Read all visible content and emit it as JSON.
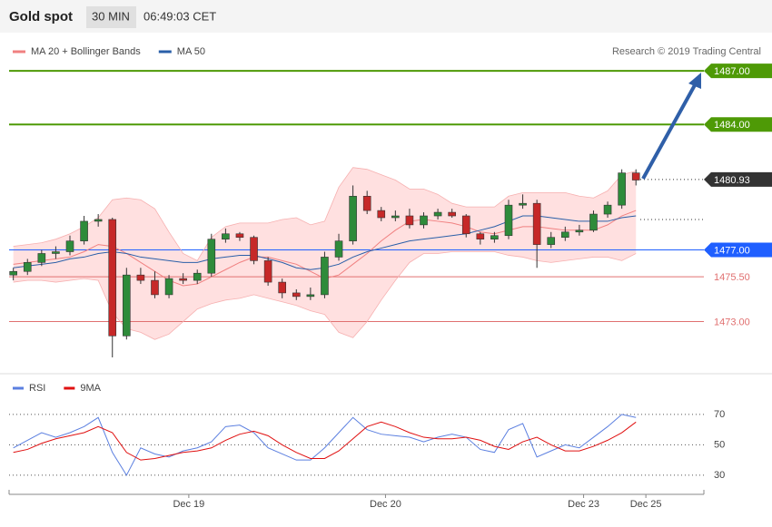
{
  "header": {
    "title": "Gold spot",
    "interval": "30 MIN",
    "time": "06:49:03 CET"
  },
  "chart_data": [
    {
      "type": "candlestick",
      "legend": [
        {
          "name": "MA 20 + Bollinger Bands",
          "color": "#f08080"
        },
        {
          "name": "MA 50",
          "color": "#2a5fa8"
        }
      ],
      "credit": "Research © 2019 Trading Central",
      "x": [
        0,
        1,
        2,
        3,
        4,
        5,
        6,
        7,
        8,
        9,
        10,
        11,
        12,
        13,
        14,
        15,
        16,
        17,
        18,
        19,
        20,
        21,
        22,
        23,
        24,
        25,
        26,
        27,
        28,
        29,
        30,
        31,
        32,
        33,
        34,
        35,
        36,
        37,
        38,
        39,
        40,
        41,
        42,
        43,
        44
      ],
      "xlim": [
        -0.3,
        48.8
      ],
      "xticks": [
        {
          "value": 12.4,
          "label": "Dec 19"
        },
        {
          "value": 26.3,
          "label": "Dec 20"
        },
        {
          "value": 40.3,
          "label": "Dec 23"
        },
        {
          "value": 44.7,
          "label": "Dec 25"
        }
      ],
      "ylim": [
        1470.19,
        1489.08
      ],
      "open": [
        1475.6,
        1475.8,
        1476.3,
        1476.8,
        1476.9,
        1477.5,
        1478.6,
        1478.7,
        1472.2,
        1475.6,
        1475.3,
        1474.5,
        1475.4,
        1475.3,
        1475.7,
        1477.6,
        1477.9,
        1477.7,
        1476.4,
        1475.2,
        1474.6,
        1474.4,
        1474.5,
        1476.6,
        1477.5,
        1480.0,
        1479.2,
        1478.8,
        1478.9,
        1478.4,
        1478.9,
        1479.1,
        1478.9,
        1477.9,
        1477.6,
        1477.8,
        1479.5,
        1479.6,
        1477.3,
        1477.7,
        1478.0,
        1478.1,
        1479.0,
        1479.5,
        1481.3
      ],
      "high": [
        1476.0,
        1476.5,
        1477.0,
        1477.2,
        1477.8,
        1478.9,
        1479.0,
        1478.8,
        1476.0,
        1476.0,
        1475.8,
        1475.6,
        1475.7,
        1475.9,
        1477.9,
        1478.2,
        1478.0,
        1477.8,
        1476.6,
        1475.4,
        1474.8,
        1474.9,
        1476.9,
        1477.9,
        1480.6,
        1480.3,
        1479.4,
        1479.2,
        1479.3,
        1479.1,
        1479.3,
        1479.3,
        1479.0,
        1478.0,
        1478.0,
        1479.8,
        1480.1,
        1479.8,
        1478.0,
        1478.3,
        1478.4,
        1479.2,
        1479.7,
        1481.5,
        1481.5
      ],
      "low": [
        1475.3,
        1475.6,
        1476.1,
        1476.5,
        1476.7,
        1477.3,
        1478.3,
        1471.0,
        1472.0,
        1475.1,
        1474.3,
        1474.3,
        1475.1,
        1475.1,
        1475.5,
        1477.4,
        1477.5,
        1476.2,
        1475.0,
        1474.3,
        1474.2,
        1474.2,
        1474.3,
        1476.4,
        1477.3,
        1479.0,
        1478.6,
        1478.6,
        1478.2,
        1478.2,
        1478.7,
        1478.8,
        1477.7,
        1477.3,
        1477.4,
        1477.6,
        1479.3,
        1476.0,
        1477.1,
        1477.5,
        1477.8,
        1478.0,
        1478.8,
        1479.3,
        1480.6
      ],
      "close": [
        1475.8,
        1476.3,
        1476.8,
        1476.9,
        1477.5,
        1478.6,
        1478.7,
        1472.2,
        1475.6,
        1475.3,
        1474.5,
        1475.4,
        1475.3,
        1475.7,
        1477.6,
        1477.9,
        1477.7,
        1476.4,
        1475.2,
        1474.6,
        1474.4,
        1474.5,
        1476.6,
        1477.5,
        1480.0,
        1479.2,
        1478.8,
        1478.9,
        1478.4,
        1478.9,
        1479.1,
        1478.9,
        1477.9,
        1477.6,
        1477.8,
        1479.5,
        1479.6,
        1477.3,
        1477.7,
        1478.0,
        1478.1,
        1479.0,
        1479.5,
        1481.3,
        1480.9
      ],
      "up_color": "#2e8b3a",
      "down_color": "#c62828",
      "series": [
        {
          "name": "Bollinger upper",
          "color": "#f6b0b0",
          "values": [
            1477.2,
            1477.3,
            1477.4,
            1477.6,
            1477.9,
            1478.3,
            1478.8,
            1479.8,
            1479.9,
            1479.8,
            1479.3,
            1478.0,
            1476.8,
            1476.4,
            1477.7,
            1478.3,
            1478.5,
            1478.5,
            1478.5,
            1478.7,
            1478.8,
            1478.4,
            1478.6,
            1480.5,
            1481.6,
            1481.5,
            1481.2,
            1480.9,
            1480.4,
            1480.4,
            1480.1,
            1479.6,
            1479.4,
            1479.4,
            1479.4,
            1480.0,
            1480.2,
            1480.2,
            1480.2,
            1480.2,
            1480.0,
            1479.9,
            1480.3,
            1481.2,
            1481.4
          ]
        },
        {
          "name": "Bollinger lower",
          "color": "#f6b0b0",
          "values": [
            1475.2,
            1475.3,
            1475.3,
            1475.2,
            1475.3,
            1475.4,
            1475.3,
            1473.5,
            1472.6,
            1472.4,
            1472.0,
            1472.3,
            1473.0,
            1473.7,
            1474.0,
            1474.2,
            1474.3,
            1474.5,
            1474.3,
            1474.1,
            1473.9,
            1473.6,
            1473.4,
            1472.4,
            1472.1,
            1473.0,
            1474.2,
            1475.3,
            1476.3,
            1476.8,
            1476.8,
            1476.9,
            1476.9,
            1476.9,
            1476.9,
            1476.7,
            1476.6,
            1476.4,
            1476.3,
            1476.4,
            1476.5,
            1476.6,
            1476.6,
            1476.4,
            1476.8
          ]
        },
        {
          "name": "MA 20",
          "color": "#f08080",
          "values": [
            1476.2,
            1476.3,
            1476.4,
            1476.5,
            1476.6,
            1476.9,
            1477.3,
            1477.2,
            1476.8,
            1476.3,
            1475.8,
            1475.3,
            1475.0,
            1475.1,
            1475.5,
            1475.9,
            1476.3,
            1476.6,
            1476.6,
            1476.4,
            1476.2,
            1475.8,
            1475.4,
            1475.6,
            1476.2,
            1476.8,
            1477.5,
            1478.1,
            1478.6,
            1478.7,
            1478.6,
            1478.5,
            1478.3,
            1478.0,
            1477.9,
            1478.1,
            1478.3,
            1478.3,
            1478.2,
            1478.1,
            1478.1,
            1478.1,
            1478.4,
            1478.9,
            1479.2
          ]
        },
        {
          "name": "MA 50",
          "color": "#2a5fa8",
          "values": [
            1476.0,
            1476.1,
            1476.2,
            1476.3,
            1476.5,
            1476.6,
            1476.8,
            1476.9,
            1476.8,
            1476.6,
            1476.5,
            1476.4,
            1476.3,
            1476.3,
            1476.5,
            1476.6,
            1476.7,
            1476.7,
            1476.5,
            1476.3,
            1476.0,
            1475.9,
            1476.0,
            1476.2,
            1476.6,
            1476.9,
            1477.1,
            1477.3,
            1477.5,
            1477.6,
            1477.7,
            1477.8,
            1477.9,
            1478.1,
            1478.3,
            1478.6,
            1478.9,
            1478.9,
            1478.8,
            1478.7,
            1478.6,
            1478.6,
            1478.6,
            1478.8,
            1478.9
          ]
        }
      ],
      "levels": [
        {
          "value": 1487,
          "label": "1487.00",
          "color": "#4e9a06"
        },
        {
          "value": 1484,
          "label": "1484.00",
          "color": "#4e9a06"
        },
        {
          "value": 1480.93,
          "label": "1480.93",
          "color": "#333333"
        },
        {
          "value": 1477,
          "label": "1477.00",
          "color": "#1f5fff"
        },
        {
          "value": 1475.5,
          "label": "1475.50",
          "color": "#e07070"
        },
        {
          "value": 1473,
          "label": "1473.00",
          "color": "#e07070"
        }
      ],
      "guide_levels": [
        1478.7
      ]
    },
    {
      "type": "line",
      "ylim": [
        20.4,
        80.1
      ],
      "yticks": [
        70,
        50,
        30
      ],
      "series": [
        {
          "name": "RSI",
          "color": "#5b7fe0",
          "values": [
            48,
            53,
            58,
            55,
            58,
            62,
            68,
            45,
            30,
            48,
            44,
            42,
            46,
            48,
            52,
            62,
            63,
            58,
            48,
            44,
            40,
            40,
            48,
            58,
            68,
            60,
            57,
            56,
            55,
            52,
            55,
            57,
            55,
            47,
            45,
            60,
            64,
            42,
            46,
            50,
            48,
            55,
            62,
            70,
            68
          ]
        },
        {
          "name": "9MA",
          "color": "#e01010",
          "values": [
            45,
            47,
            51,
            54,
            56,
            58,
            62,
            58,
            45,
            40,
            41,
            43,
            45,
            46,
            48,
            53,
            57,
            59,
            56,
            50,
            45,
            41,
            41,
            46,
            54,
            62,
            65,
            62,
            58,
            55,
            54,
            54,
            55,
            53,
            49,
            47,
            52,
            55,
            50,
            46,
            46,
            49,
            53,
            58,
            65
          ]
        }
      ]
    }
  ]
}
